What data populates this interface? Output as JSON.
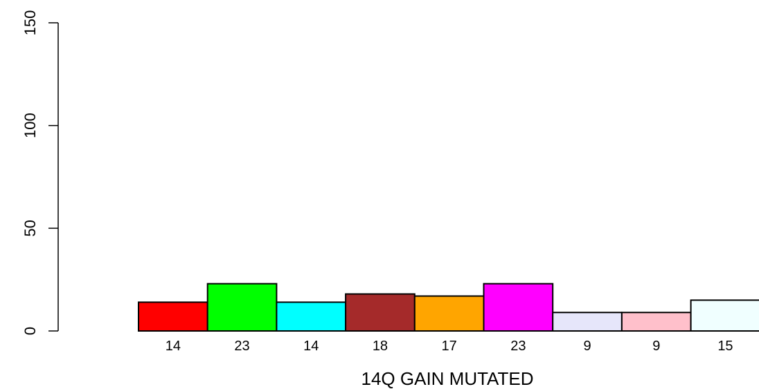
{
  "chart_data": {
    "type": "bar",
    "title": "",
    "xlabel": "14Q GAIN MUTATED",
    "ylabel": "",
    "ylim": [
      0,
      150
    ],
    "yticks": [
      0,
      50,
      100,
      150
    ],
    "grid": false,
    "legend": "none",
    "categories": [
      "14",
      "23",
      "14",
      "18",
      "17",
      "23",
      "9",
      "9",
      "15"
    ],
    "values": [
      14,
      23,
      14,
      18,
      17,
      23,
      9,
      9,
      15
    ],
    "colors": [
      "#ff0000",
      "#00ff00",
      "#00ffff",
      "#a52a2a",
      "#ffa500",
      "#ff00ff",
      "#e6e6fa",
      "#ffc0cb",
      "#f0ffff"
    ]
  }
}
